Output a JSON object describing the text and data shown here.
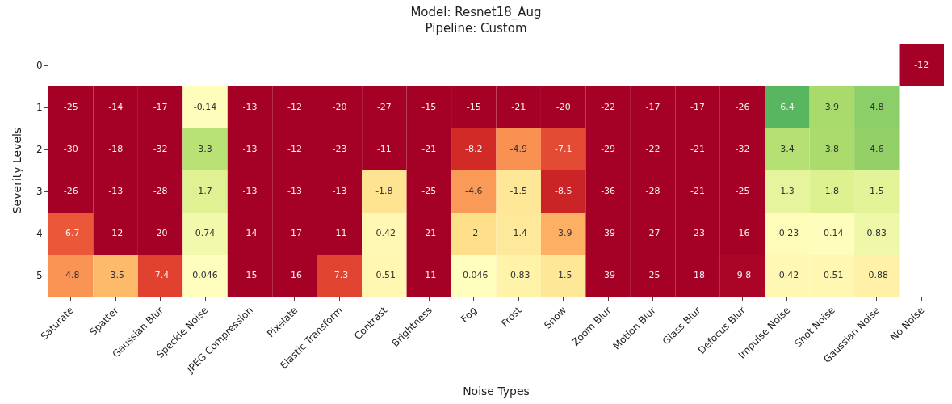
{
  "chart_data": {
    "type": "heatmap",
    "title": "Model: Resnet18_Aug\nPipeline: Custom",
    "xlabel": "Noise Types",
    "ylabel": "Severity Levels",
    "categories": [
      "Saturate",
      "Spatter",
      "Gaussian Blur",
      "Speckle Noise",
      "JPEG Compression",
      "Pixelate",
      "Elastic Transform",
      "Contrast",
      "Brightness",
      "Fog",
      "Frost",
      "Snow",
      "Zoom Blur",
      "Motion Blur",
      "Glass Blur",
      "Defocus Blur",
      "Impulse Noise",
      "Shot Noise",
      "Gaussian Noise",
      "No Noise"
    ],
    "y_categories": [
      "0",
      "1",
      "2",
      "3",
      "4",
      "5"
    ],
    "cells": [
      [
        null,
        null,
        null,
        null,
        null,
        null,
        null,
        null,
        null,
        null,
        null,
        null,
        null,
        null,
        null,
        null,
        null,
        null,
        null,
        -12
      ],
      [
        -25,
        -14,
        -17,
        -0.14,
        -13,
        -12,
        -20,
        -27,
        -15,
        -15,
        -21,
        -20,
        -22,
        -17,
        -17,
        -26,
        6.4,
        3.9,
        4.8,
        null
      ],
      [
        -30,
        -18,
        -32,
        3.3,
        -13,
        -12,
        -23,
        -11,
        -21,
        -8.2,
        -4.9,
        -7.1,
        -29,
        -22,
        -21,
        -32,
        3.4,
        3.8,
        4.6,
        null
      ],
      [
        -26,
        -13,
        -28,
        1.7,
        -13,
        -13,
        -13,
        -1.8,
        -25,
        -4.6,
        -1.5,
        -8.5,
        -36,
        -28,
        -21,
        -25,
        1.3,
        1.8,
        1.5,
        null
      ],
      [
        -6.7,
        -12,
        -20,
        0.74,
        -14,
        -17,
        -11,
        -0.42,
        -21,
        -2,
        -1.4,
        -3.9,
        -39,
        -27,
        -23,
        -16,
        -0.23,
        -0.14,
        0.83,
        null
      ],
      [
        -4.8,
        -3.5,
        -7.4,
        0.046,
        -15,
        -16,
        -7.3,
        -0.51,
        -11,
        -0.046,
        -0.83,
        -1.5,
        -39,
        -25,
        -18,
        -9.8,
        -0.42,
        -0.51,
        -0.88,
        null
      ]
    ],
    "data_labels": true
  }
}
